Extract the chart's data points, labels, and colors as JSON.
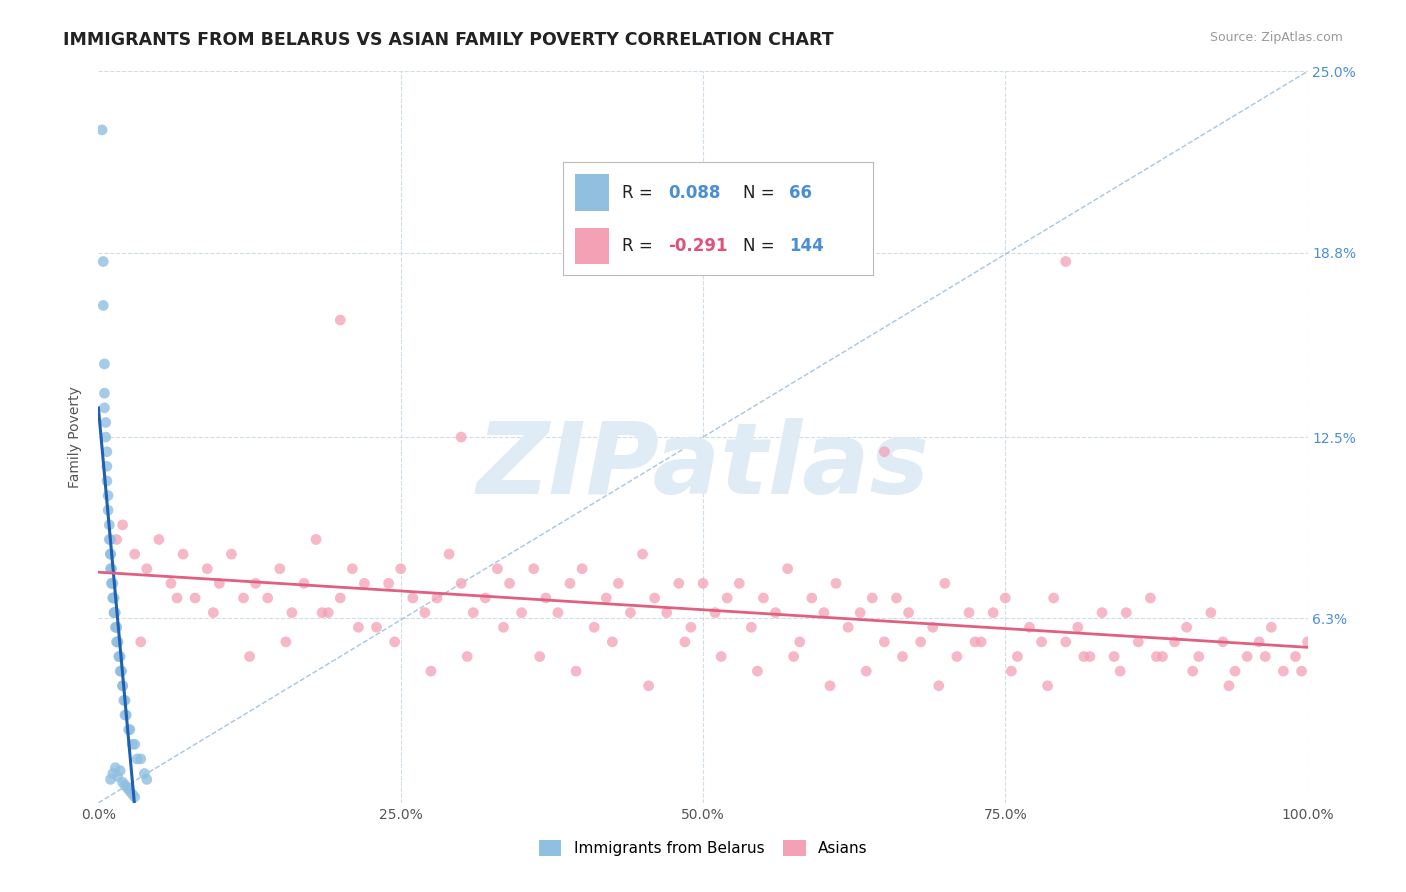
{
  "title": "IMMIGRANTS FROM BELARUS VS ASIAN FAMILY POVERTY CORRELATION CHART",
  "source_text": "Source: ZipAtlas.com",
  "ylabel": "Family Poverty",
  "xlim": [
    0.0,
    100.0
  ],
  "ylim": [
    0.0,
    25.0
  ],
  "ytick_vals": [
    6.3,
    12.5,
    18.8,
    25.0
  ],
  "ytick_labels": [
    "6.3%",
    "12.5%",
    "18.8%",
    "25.0%"
  ],
  "xtick_vals": [
    0.0,
    25.0,
    50.0,
    75.0,
    100.0
  ],
  "xtick_labels": [
    "0.0%",
    "25.0%",
    "50.0%",
    "75.0%",
    "100.0%"
  ],
  "color_blue": "#90bfe0",
  "color_pink": "#f4a0b5",
  "color_blue_text": "#4a8fd4",
  "color_pink_text": "#e0507a",
  "color_dark_text": "#222222",
  "watermark": "ZIPatlas",
  "watermark_color": "#e0ecf5",
  "grid_color": "#d0dde8",
  "diagonal_color": "#90b8d8",
  "trend_blue_color": "#2060b0",
  "trend_pink_color": "#e06080",
  "blue_x": [
    0.3,
    0.4,
    0.4,
    0.5,
    0.5,
    0.5,
    0.6,
    0.6,
    0.7,
    0.7,
    0.7,
    0.8,
    0.8,
    0.9,
    0.9,
    1.0,
    1.0,
    1.0,
    1.0,
    1.1,
    1.1,
    1.1,
    1.2,
    1.2,
    1.2,
    1.3,
    1.3,
    1.3,
    1.4,
    1.4,
    1.5,
    1.5,
    1.5,
    1.6,
    1.6,
    1.7,
    1.7,
    1.8,
    1.8,
    1.9,
    1.9,
    2.0,
    2.0,
    2.1,
    2.2,
    2.2,
    2.3,
    2.5,
    2.6,
    2.8,
    3.0,
    3.2,
    3.5,
    3.8,
    4.0,
    1.0,
    1.2,
    1.4,
    1.6,
    1.8,
    2.0,
    2.2,
    2.4,
    2.6,
    2.8,
    3.0
  ],
  "blue_y": [
    23.0,
    18.5,
    17.0,
    15.0,
    14.0,
    13.5,
    13.0,
    12.5,
    12.0,
    11.5,
    11.0,
    10.5,
    10.0,
    9.5,
    9.0,
    9.0,
    8.5,
    8.5,
    8.0,
    8.0,
    7.5,
    7.5,
    7.5,
    7.0,
    7.0,
    7.0,
    6.5,
    6.5,
    6.5,
    6.0,
    6.0,
    6.0,
    5.5,
    5.5,
    5.5,
    5.0,
    5.0,
    5.0,
    4.5,
    4.5,
    4.5,
    4.0,
    4.0,
    3.5,
    3.5,
    3.0,
    3.0,
    2.5,
    2.5,
    2.0,
    2.0,
    1.5,
    1.5,
    1.0,
    0.8,
    0.8,
    1.0,
    1.2,
    0.9,
    1.1,
    0.7,
    0.6,
    0.5,
    0.4,
    0.3,
    0.2
  ],
  "pink_x": [
    1.5,
    2.0,
    3.0,
    4.0,
    5.0,
    6.0,
    7.0,
    8.0,
    9.0,
    10.0,
    11.0,
    12.0,
    13.0,
    14.0,
    15.0,
    16.0,
    17.0,
    18.0,
    19.0,
    20.0,
    21.0,
    22.0,
    23.0,
    24.0,
    25.0,
    26.0,
    27.0,
    28.0,
    29.0,
    30.0,
    31.0,
    32.0,
    33.0,
    34.0,
    35.0,
    36.0,
    37.0,
    38.0,
    39.0,
    40.0,
    41.0,
    42.0,
    43.0,
    44.0,
    45.0,
    46.0,
    47.0,
    48.0,
    49.0,
    50.0,
    51.0,
    52.0,
    53.0,
    54.0,
    55.0,
    56.0,
    57.0,
    58.0,
    59.0,
    60.0,
    61.0,
    62.0,
    63.0,
    64.0,
    65.0,
    66.0,
    67.0,
    68.0,
    69.0,
    70.0,
    71.0,
    72.0,
    73.0,
    74.0,
    75.0,
    76.0,
    77.0,
    78.0,
    79.0,
    80.0,
    81.0,
    82.0,
    83.0,
    84.0,
    85.0,
    86.0,
    87.0,
    88.0,
    89.0,
    90.0,
    91.0,
    92.0,
    93.0,
    94.0,
    95.0,
    96.0,
    97.0,
    98.0,
    99.0,
    100.0,
    3.5,
    6.5,
    9.5,
    12.5,
    15.5,
    18.5,
    21.5,
    24.5,
    27.5,
    30.5,
    33.5,
    36.5,
    39.5,
    42.5,
    45.5,
    48.5,
    51.5,
    54.5,
    57.5,
    60.5,
    63.5,
    66.5,
    69.5,
    72.5,
    75.5,
    78.5,
    81.5,
    84.5,
    87.5,
    90.5,
    93.5,
    96.5,
    99.5,
    20.0,
    30.0,
    65.0,
    80.0
  ],
  "pink_y": [
    9.0,
    9.5,
    8.5,
    8.0,
    9.0,
    7.5,
    8.5,
    7.0,
    8.0,
    7.5,
    8.5,
    7.0,
    7.5,
    7.0,
    8.0,
    6.5,
    7.5,
    9.0,
    6.5,
    7.0,
    8.0,
    7.5,
    6.0,
    7.5,
    8.0,
    7.0,
    6.5,
    7.0,
    8.5,
    7.5,
    6.5,
    7.0,
    8.0,
    7.5,
    6.5,
    8.0,
    7.0,
    6.5,
    7.5,
    8.0,
    6.0,
    7.0,
    7.5,
    6.5,
    8.5,
    7.0,
    6.5,
    7.5,
    6.0,
    7.5,
    6.5,
    7.0,
    7.5,
    6.0,
    7.0,
    6.5,
    8.0,
    5.5,
    7.0,
    6.5,
    7.5,
    6.0,
    6.5,
    7.0,
    5.5,
    7.0,
    6.5,
    5.5,
    6.0,
    7.5,
    5.0,
    6.5,
    5.5,
    6.5,
    7.0,
    5.0,
    6.0,
    5.5,
    7.0,
    5.5,
    6.0,
    5.0,
    6.5,
    5.0,
    6.5,
    5.5,
    7.0,
    5.0,
    5.5,
    6.0,
    5.0,
    6.5,
    5.5,
    4.5,
    5.0,
    5.5,
    6.0,
    4.5,
    5.0,
    5.5,
    5.5,
    7.0,
    6.5,
    5.0,
    5.5,
    6.5,
    6.0,
    5.5,
    4.5,
    5.0,
    6.0,
    5.0,
    4.5,
    5.5,
    4.0,
    5.5,
    5.0,
    4.5,
    5.0,
    4.0,
    4.5,
    5.0,
    4.0,
    5.5,
    4.5,
    4.0,
    5.0,
    4.5,
    5.0,
    4.5,
    4.0,
    5.0,
    4.5,
    16.5,
    12.5,
    12.0,
    18.5
  ]
}
